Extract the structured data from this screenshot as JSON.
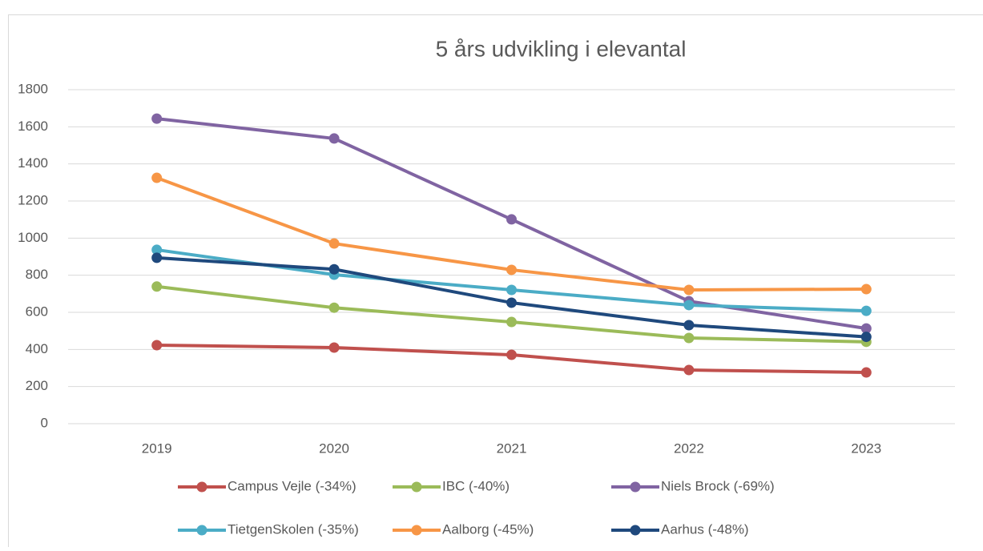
{
  "chart_data": {
    "type": "line",
    "title": "5 års udvikling i elevantal",
    "categories": [
      "2019",
      "2020",
      "2021",
      "2022",
      "2023"
    ],
    "series": [
      {
        "name": "Campus Vejle (-34%)",
        "color": "#c0504d",
        "values": [
          423,
          410,
          371,
          289,
          276
        ]
      },
      {
        "name": "IBC (-40%)",
        "color": "#9bbb59",
        "values": [
          739,
          625,
          548,
          462,
          441
        ]
      },
      {
        "name": "Niels Brock (-69%)",
        "color": "#8064a2",
        "values": [
          1644,
          1537,
          1101,
          660,
          513
        ]
      },
      {
        "name": "TietgenSkolen (-35%)",
        "color": "#4bacc6",
        "values": [
          937,
          803,
          721,
          639,
          608
        ]
      },
      {
        "name": "Aalborg (-45%)",
        "color": "#f79646",
        "values": [
          1325,
          971,
          829,
          721,
          725
        ]
      },
      {
        "name": "Aarhus (-48%)",
        "color": "#1f497d",
        "values": [
          894,
          832,
          652,
          531,
          468
        ]
      }
    ],
    "ylim": [
      0,
      1800
    ],
    "yticks": [
      0,
      200,
      400,
      600,
      800,
      1000,
      1200,
      1400,
      1600,
      1800
    ],
    "grid": true,
    "legend": "bottom"
  }
}
